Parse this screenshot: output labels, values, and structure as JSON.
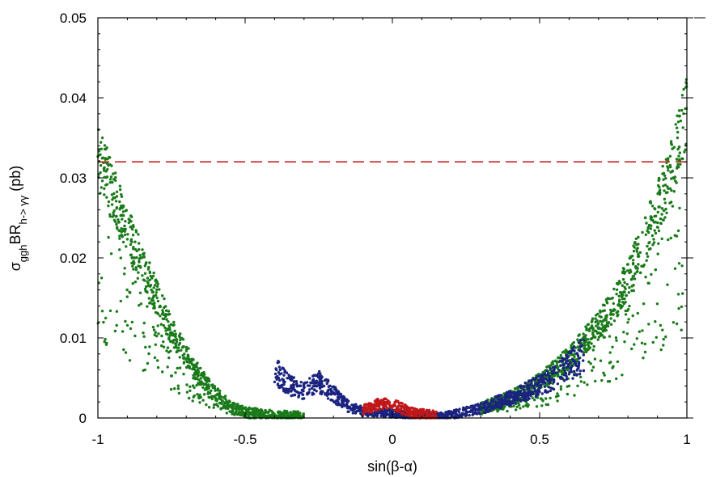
{
  "chart_data": {
    "type": "scatter",
    "title": "",
    "xlabel": {
      "text": "sin(β-α)"
    },
    "ylabel": {
      "parts": [
        {
          "text": "σ",
          "style": "normal"
        },
        {
          "text": "ggh",
          "style": "sub"
        },
        {
          "text": "BR",
          "style": "normal"
        },
        {
          "text": "h-> γγ",
          "style": "sub"
        },
        {
          "text": " (pb)",
          "style": "normal"
        }
      ]
    },
    "xlim": [
      -1,
      1
    ],
    "ylim": [
      0,
      0.05
    ],
    "x_ticks": [
      -1,
      -0.5,
      0,
      0.5,
      1
    ],
    "x_tick_labels": [
      "-1",
      "-0.5",
      "0",
      "0.5",
      "1"
    ],
    "y_ticks": [
      0,
      0.01,
      0.02,
      0.03,
      0.04,
      0.05
    ],
    "y_tick_labels": [
      "0",
      "0.01",
      "0.02",
      "0.03",
      "0.04",
      "0.05"
    ],
    "grid": false,
    "legend": "none",
    "reference_line": {
      "y": 0.032,
      "style": "dashed",
      "color": "#cc2222"
    },
    "colors": {
      "green": "#1a7a1a",
      "blue": "#1a237e",
      "red": "#c01818"
    },
    "series": [
      {
        "color": "green",
        "description_points": [
          [
            -1.0,
            0.033
          ],
          [
            -0.98,
            0.031
          ],
          [
            -0.95,
            0.028
          ],
          [
            -0.9,
            0.0235
          ],
          [
            -0.85,
            0.019
          ],
          [
            -0.8,
            0.015
          ],
          [
            -0.75,
            0.011
          ],
          [
            -0.7,
            0.0078
          ],
          [
            -0.65,
            0.005
          ],
          [
            -0.6,
            0.003
          ],
          [
            -0.55,
            0.0015
          ],
          [
            -0.5,
            0.0007
          ],
          [
            -0.4,
            0.0003
          ],
          [
            -0.3,
            0.0002
          ],
          [
            0.3,
            0.0012
          ],
          [
            0.4,
            0.0025
          ],
          [
            0.5,
            0.0045
          ],
          [
            0.6,
            0.0075
          ],
          [
            0.7,
            0.0115
          ],
          [
            0.75,
            0.014
          ],
          [
            0.8,
            0.0175
          ],
          [
            0.85,
            0.0215
          ],
          [
            0.9,
            0.026
          ],
          [
            0.95,
            0.031
          ],
          [
            0.98,
            0.0355
          ],
          [
            1.0,
            0.039
          ]
        ]
      },
      {
        "color": "blue",
        "description_points": [
          [
            -0.4,
            0.006
          ],
          [
            -0.35,
            0.004
          ],
          [
            -0.3,
            0.0035
          ],
          [
            -0.25,
            0.0045
          ],
          [
            -0.2,
            0.003
          ],
          [
            -0.15,
            0.0015
          ],
          [
            -0.1,
            0.0008
          ],
          [
            0.15,
            0.0002
          ],
          [
            0.2,
            0.0004
          ],
          [
            0.3,
            0.0012
          ],
          [
            0.4,
            0.0025
          ],
          [
            0.5,
            0.004
          ],
          [
            0.55,
            0.005
          ],
          [
            0.6,
            0.0065
          ],
          [
            0.65,
            0.008
          ]
        ]
      },
      {
        "color": "red",
        "description_points": [
          [
            -0.1,
            0.001
          ],
          [
            -0.05,
            0.0017
          ],
          [
            0.0,
            0.0018
          ],
          [
            0.05,
            0.0008
          ],
          [
            0.1,
            0.0004
          ],
          [
            0.15,
            0.0002
          ]
        ]
      }
    ]
  }
}
